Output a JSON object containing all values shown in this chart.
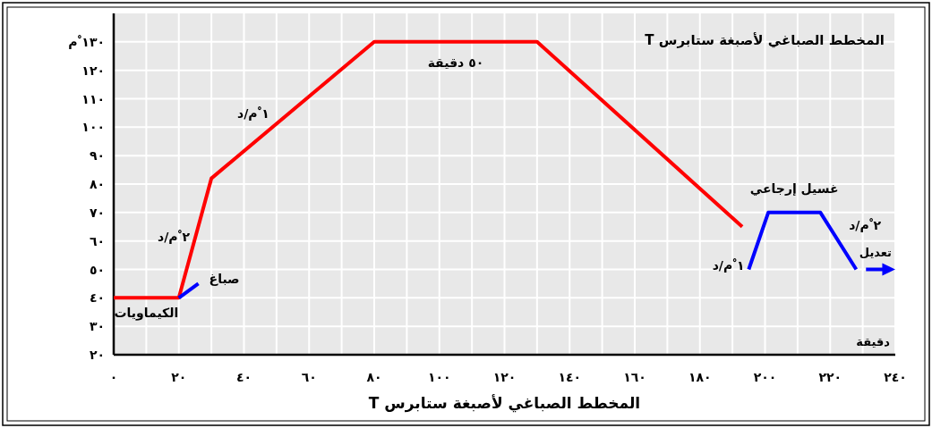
{
  "chart_data": {
    "type": "line",
    "title": "المخطط الصباغي لأصبغة ستابرس T",
    "xlabel": "المخطط الصباغي لأصبغة ستابرس T",
    "xlim": [
      0,
      240
    ],
    "ylim": [
      20,
      140
    ],
    "xticks": [
      {
        "value": 0,
        "label": "٠"
      },
      {
        "value": 10,
        "label": null
      },
      {
        "value": 20,
        "label": "٢٠"
      },
      {
        "value": 30,
        "label": null
      },
      {
        "value": 40,
        "label": "٤٠"
      },
      {
        "value": 50,
        "label": null
      },
      {
        "value": 60,
        "label": "٦٠"
      },
      {
        "value": 70,
        "label": null
      },
      {
        "value": 80,
        "label": "٨٠"
      },
      {
        "value": 90,
        "label": null
      },
      {
        "value": 100,
        "label": "١٠٠"
      },
      {
        "value": 110,
        "label": null
      },
      {
        "value": 120,
        "label": "١٢٠"
      },
      {
        "value": 130,
        "label": null
      },
      {
        "value": 140,
        "label": "١٤٠"
      },
      {
        "value": 150,
        "label": null
      },
      {
        "value": 160,
        "label": "١٦٠"
      },
      {
        "value": 170,
        "label": null
      },
      {
        "value": 180,
        "label": "١٨٠"
      },
      {
        "value": 190,
        "label": null
      },
      {
        "value": 200,
        "label": "٢٠٠"
      },
      {
        "value": 210,
        "label": null
      },
      {
        "value": 220,
        "label": "٢٢٠"
      },
      {
        "value": 230,
        "label": null
      },
      {
        "value": 240,
        "label": "٢٤٠"
      }
    ],
    "yticks": [
      {
        "value": 20,
        "label": "٢٠"
      },
      {
        "value": 30,
        "label": "٣٠"
      },
      {
        "value": 40,
        "label": "٤٠"
      },
      {
        "value": 50,
        "label": "٥٠"
      },
      {
        "value": 60,
        "label": "٦٠"
      },
      {
        "value": 70,
        "label": "٧٠"
      },
      {
        "value": 80,
        "label": "٨٠"
      },
      {
        "value": 90,
        "label": "٩٠"
      },
      {
        "value": 100,
        "label": "١٠٠"
      },
      {
        "value": 110,
        "label": "١١٠"
      },
      {
        "value": 120,
        "label": "١٢٠"
      },
      {
        "value": 130,
        "label": "١٣٠ ْم"
      }
    ],
    "grid": true,
    "marker": "none",
    "line_style": "solid",
    "series": [
      {
        "color": "#ff0000",
        "x": [
          0,
          20,
          30,
          80,
          130,
          193
        ],
        "values": [
          40,
          40,
          82,
          130,
          130,
          65
        ]
      },
      {
        "color": "#0000ff",
        "x": [
          20,
          26
        ],
        "values": [
          40,
          45
        ]
      },
      {
        "color": "#0000ff",
        "x": [
          195,
          201,
          217,
          228
        ],
        "values": [
          50,
          70,
          70,
          50
        ]
      }
    ],
    "annotations": [
      {
        "text": "٥٠ دقيقة",
        "x": 105,
        "y": 130
      },
      {
        "text": "١ ْم/د",
        "x": 50,
        "y": 100
      },
      {
        "text": "٢ ْم/د",
        "x": 25,
        "y": 60
      },
      {
        "text": "صباغ",
        "x": 26,
        "y": 45
      },
      {
        "text": "الكيماويات",
        "x": 10,
        "y": 40
      },
      {
        "text": "غسيل إرجاعي",
        "x": 209,
        "y": 70
      },
      {
        "text": "١ ْم/د",
        "x": 197,
        "y": 58
      },
      {
        "text": "٢ ْم/د",
        "x": 223,
        "y": 62
      },
      "تعديل",
      "دقيقة"
    ]
  }
}
